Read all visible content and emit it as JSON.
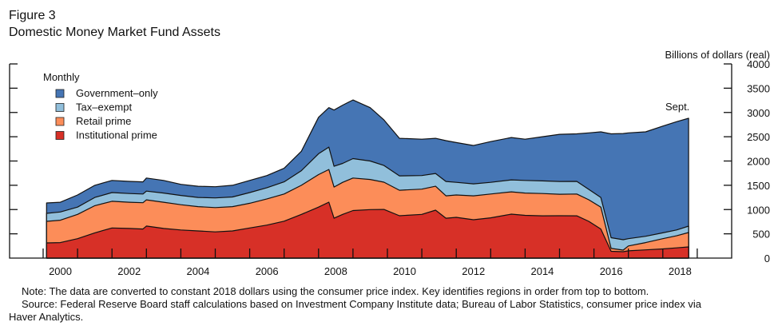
{
  "header": {
    "figure_label": "Figure 3",
    "title": "Domestic Money Market Fund Assets"
  },
  "footer": {
    "note": "Note: The data are converted to constant 2018 dollars using the consumer price index. Key identifies regions in order from top to bottom.",
    "source": "Source: Federal Reserve Board staff calculations based on Investment Company Institute data; Bureau of Labor Statistics, consumer price index via Haver Analytics."
  },
  "chart_data": {
    "type": "area",
    "stacked": true,
    "title": "Domestic Money Market Fund Assets",
    "ylabel": "Billions of dollars (real)",
    "xlabel": "",
    "frequency_label": "Monthly",
    "annotation": "Sept.",
    "ylim": [
      0,
      4000
    ],
    "xlim": [
      1999.0,
      2020.0
    ],
    "yticks": [
      0,
      500,
      1000,
      1500,
      2000,
      2500,
      3000,
      3500,
      4000
    ],
    "xticks": [
      2000,
      2002,
      2004,
      2006,
      2008,
      2010,
      2012,
      2014,
      2016,
      2018
    ],
    "legend_position": "top-left",
    "grid": false,
    "x": [
      2000.1,
      2000.5,
      2001.0,
      2001.5,
      2002.0,
      2002.5,
      2002.9,
      2003.0,
      2003.5,
      2004.0,
      2004.5,
      2005.0,
      2005.5,
      2006.0,
      2006.5,
      2007.0,
      2007.5,
      2008.0,
      2008.3,
      2008.45,
      2008.7,
      2009.0,
      2009.5,
      2009.9,
      2010.35,
      2011.0,
      2011.4,
      2011.7,
      2012.0,
      2012.5,
      2013.0,
      2013.6,
      2014.0,
      2014.5,
      2015.0,
      2015.5,
      2015.85,
      2016.2,
      2016.5,
      2016.85,
      2017.0,
      2017.5,
      2018.0,
      2018.4,
      2018.75
    ],
    "series": [
      {
        "name": "Government-only",
        "color": "#4575b4",
        "cumulative_top": [
          1135,
          1150,
          1300,
          1500,
          1600,
          1580,
          1570,
          1650,
          1600,
          1520,
          1480,
          1470,
          1500,
          1600,
          1700,
          1850,
          2200,
          2900,
          3100,
          3050,
          3150,
          3257,
          3100,
          2846,
          2468,
          2450,
          2468,
          2420,
          2380,
          2320,
          2400,
          2484,
          2450,
          2500,
          2550,
          2560,
          2580,
          2600,
          2560,
          2566,
          2580,
          2600,
          2720,
          2810,
          2880
        ]
      },
      {
        "name": "Tax-exempt",
        "color": "#91bfdb",
        "cumulative_top": [
          921,
          950,
          1050,
          1250,
          1350,
          1330,
          1320,
          1380,
          1340,
          1290,
          1250,
          1240,
          1260,
          1350,
          1450,
          1570,
          1800,
          2150,
          2287,
          1892,
          1950,
          2050,
          2000,
          1908,
          1694,
          1700,
          1744,
          1579,
          1560,
          1530,
          1560,
          1612,
          1600,
          1590,
          1579,
          1580,
          1415,
          1250,
          420,
          378,
          400,
          450,
          520,
          580,
          658
        ]
      },
      {
        "name": "Retail prime",
        "color": "#fc8d59",
        "cumulative_top": [
          757,
          780,
          900,
          1080,
          1170,
          1150,
          1140,
          1200,
          1150,
          1100,
          1060,
          1040,
          1060,
          1130,
          1220,
          1320,
          1500,
          1720,
          1826,
          1464,
          1560,
          1650,
          1620,
          1563,
          1398,
          1420,
          1480,
          1283,
          1300,
          1283,
          1320,
          1365,
          1340,
          1330,
          1316,
          1320,
          1201,
          1050,
          200,
          165,
          250,
          320,
          400,
          460,
          526
        ]
      },
      {
        "name": "Institutional prime",
        "color": "#d73027",
        "cumulative_top": [
          313,
          320,
          400,
          520,
          620,
          610,
          600,
          660,
          610,
          580,
          560,
          540,
          560,
          620,
          680,
          760,
          900,
          1050,
          1152,
          822,
          900,
          980,
          1000,
          1003,
          872,
          900,
          987,
          822,
          840,
          790,
          830,
          905,
          880,
          870,
          872,
          870,
          757,
          600,
          140,
          132,
          150,
          170,
          190,
          210,
          230
        ]
      }
    ]
  }
}
